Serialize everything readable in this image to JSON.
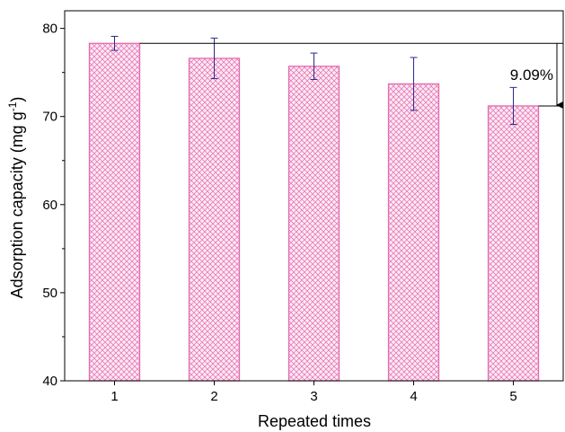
{
  "chart_data": {
    "type": "bar",
    "categories": [
      "1",
      "2",
      "3",
      "4",
      "5"
    ],
    "values": [
      78.3,
      76.6,
      75.7,
      73.7,
      71.2
    ],
    "errors": [
      0.8,
      2.3,
      1.5,
      3.0,
      2.1
    ],
    "xlabel": "Repeated times",
    "ylabel_text": "Adsorption capacity (mg g",
    "ylabel_superscript": "-1",
    "ylabel_close": ")",
    "ylim": [
      40,
      80
    ],
    "yticks": [
      "40",
      "50",
      "60",
      "70",
      "80"
    ],
    "annotation": "9.09%",
    "grid": false,
    "bar_color": "#e36bb2",
    "bar_fill": "#fbe3ef",
    "errorbar_color": "#2a2a8c"
  }
}
